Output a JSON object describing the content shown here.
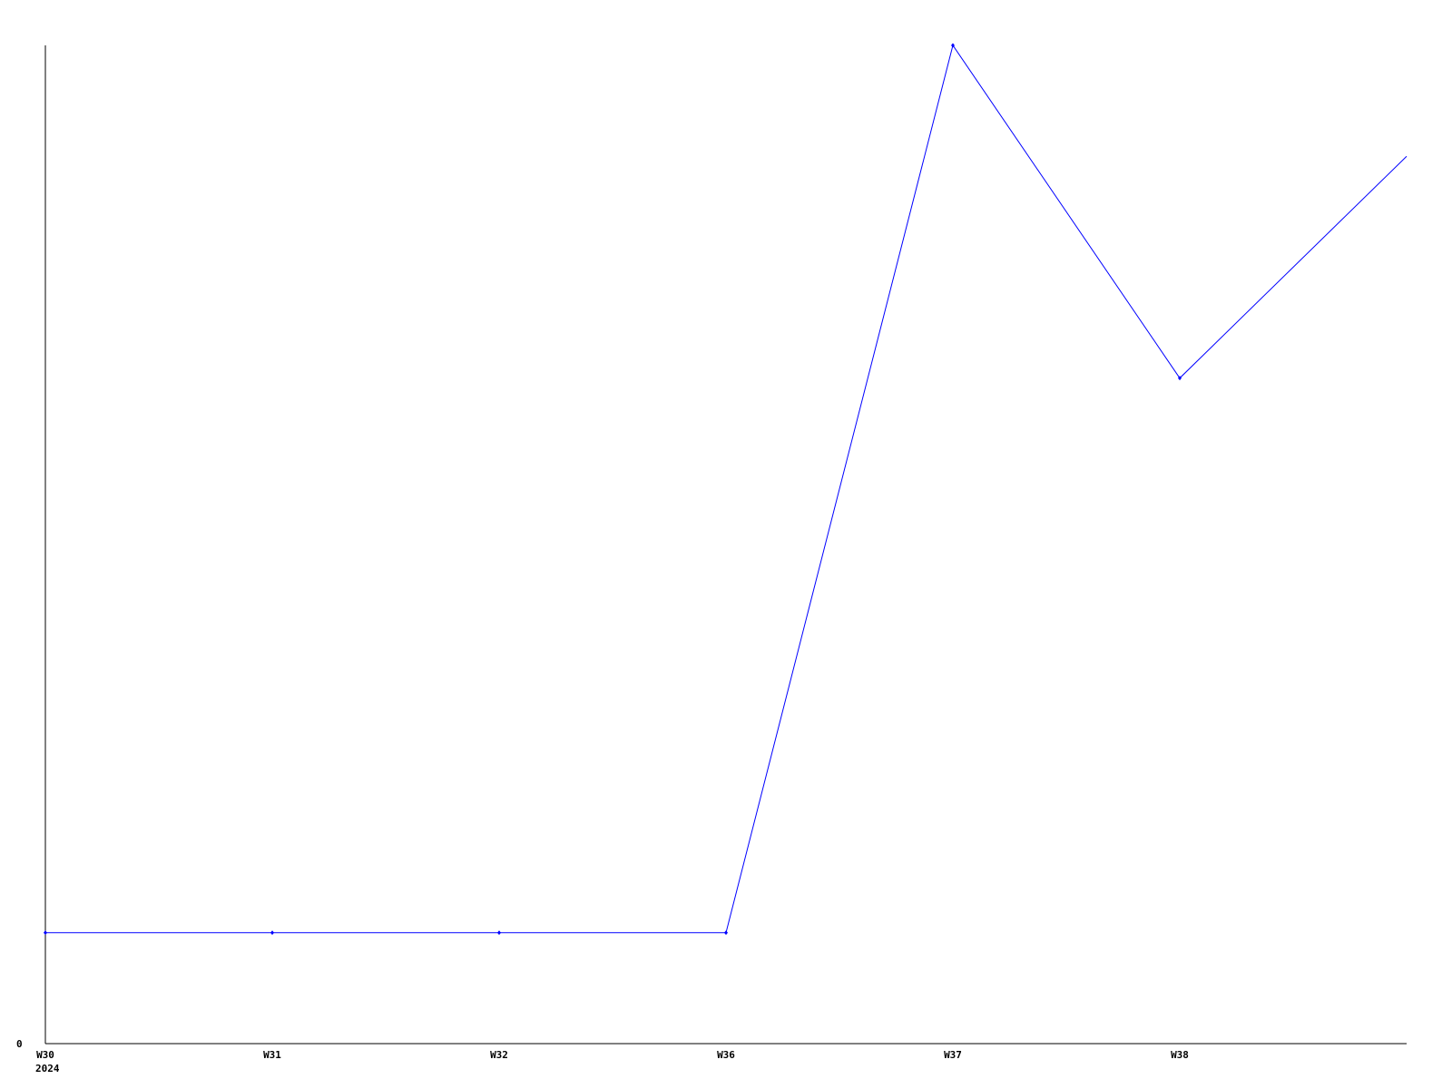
{
  "chart_data": {
    "type": "line",
    "title": "",
    "xlabel": "",
    "ylabel": "",
    "categories": [
      "W30",
      "W31",
      "W32",
      "W36",
      "W37",
      "W38",
      ""
    ],
    "x_sublabels": [
      "2024",
      "",
      "",
      "",
      "",
      "",
      ""
    ],
    "series": [
      {
        "values": [
          1,
          1,
          1,
          1,
          9,
          6,
          8
        ],
        "color": "#0000ff"
      }
    ],
    "y_ticks": [
      "0"
    ],
    "ylim": [
      0,
      9
    ],
    "grid": false,
    "markers": "small diamond",
    "axis_color": "#000000"
  }
}
